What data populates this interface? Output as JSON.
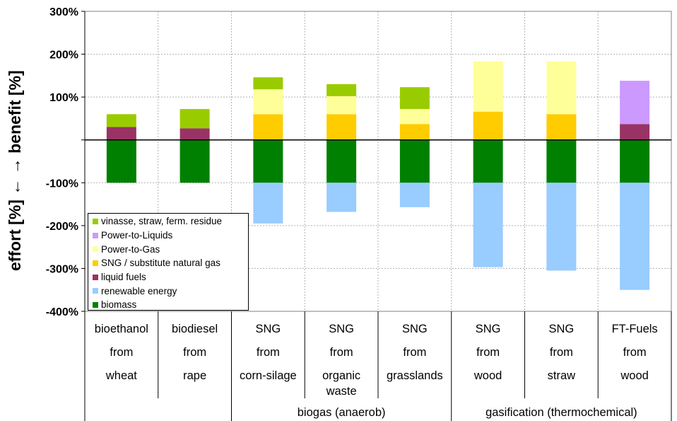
{
  "chart_data": {
    "type": "bar",
    "stacked": true,
    "ylabel_top": "benefit [%]",
    "ylabel_bottom": "effort [%]",
    "ylim": [
      -400,
      300
    ],
    "yticks": [
      "300%",
      "200%",
      "100%",
      "",
      "-100%",
      "-200%",
      "-300%",
      "-400%"
    ],
    "ytick_values": [
      300,
      200,
      100,
      0,
      -100,
      -200,
      -300,
      -400
    ],
    "grid": true,
    "legend_position": "bottom-left",
    "categories": [
      {
        "lines": [
          "bioethanol",
          "from",
          "wheat"
        ]
      },
      {
        "lines": [
          "biodiesel",
          "from",
          "rape"
        ]
      },
      {
        "lines": [
          "SNG",
          "from",
          "corn-silage"
        ]
      },
      {
        "lines": [
          "SNG",
          "from",
          "organic",
          "waste"
        ]
      },
      {
        "lines": [
          "SNG",
          "from",
          "grasslands"
        ]
      },
      {
        "lines": [
          "SNG",
          "from",
          "wood"
        ]
      },
      {
        "lines": [
          "SNG",
          "from",
          "straw"
        ]
      },
      {
        "lines": [
          "FT-Fuels",
          "from",
          "wood"
        ]
      }
    ],
    "groups": [
      {
        "label": "",
        "from": 0,
        "to": 1
      },
      {
        "label": "biogas (anaerob)",
        "from": 2,
        "to": 4
      },
      {
        "label": "gasification (thermochemical)",
        "from": 5,
        "to": 7
      }
    ],
    "series": [
      {
        "name": "biomass",
        "color": "#008000",
        "values": [
          -100,
          -100,
          -100,
          -100,
          -100,
          -100,
          -100,
          -100
        ]
      },
      {
        "name": "renewable energy",
        "color": "#99ccff",
        "values": [
          0,
          0,
          -95,
          -68,
          -57,
          -197,
          -205,
          -250
        ]
      },
      {
        "name": "liquid fuels",
        "color": "#993366",
        "values": [
          30,
          27,
          0,
          0,
          0,
          0,
          0,
          37
        ]
      },
      {
        "name": "SNG / substitute natural gas",
        "color": "#ffcc00",
        "values": [
          0,
          0,
          60,
          60,
          37,
          66,
          60,
          0
        ]
      },
      {
        "name": "Power-to-Gas",
        "color": "#ffff99",
        "values": [
          0,
          0,
          58,
          42,
          35,
          117,
          123,
          0
        ]
      },
      {
        "name": "Power-to-Liquids",
        "color": "#cc99ff",
        "values": [
          0,
          0,
          0,
          0,
          0,
          0,
          0,
          101
        ]
      },
      {
        "name": "vinasse, straw, ferm. residue",
        "color": "#99cc00",
        "values": [
          30,
          45,
          28,
          28,
          51,
          0,
          0,
          0
        ]
      }
    ],
    "legend_order": [
      "vinasse, straw, ferm. residue",
      "Power-to-Liquids",
      "Power-to-Gas",
      "SNG / substitute natural gas",
      "liquid fuels",
      "renewable energy",
      "biomass"
    ]
  }
}
